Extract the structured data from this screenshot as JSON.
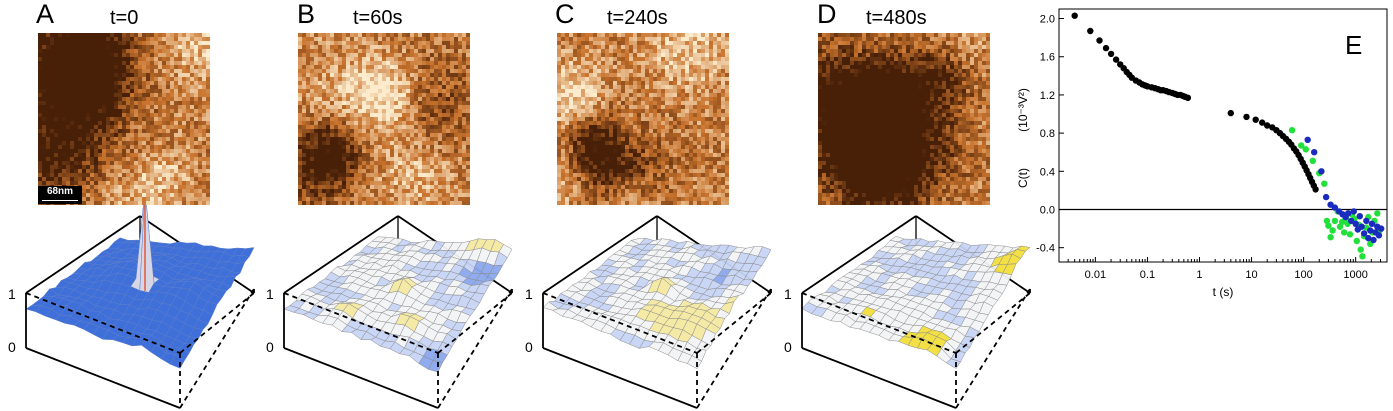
{
  "panels": [
    {
      "letter": "A",
      "time": "t=0",
      "scalebar": "68nm",
      "seed": 11,
      "peak": "sharp"
    },
    {
      "letter": "B",
      "time": "t=60s",
      "seed": 23,
      "peak": "small"
    },
    {
      "letter": "C",
      "time": "t=240s",
      "seed": 37,
      "peak": "small"
    },
    {
      "letter": "D",
      "time": "t=480s",
      "seed": 53,
      "peak": "flat"
    }
  ],
  "box_axis": {
    "top_label": "1",
    "bottom_label": "0"
  },
  "colors": {
    "afm_dark": "#5a2a08",
    "afm_mid": "#c9732c",
    "afm_light": "#fbe9c8",
    "surface_blue": "#3f6fd8",
    "surface_yellow": "#f2de3a",
    "series_black": "#000000",
    "series_green": "#22e03a",
    "series_blue": "#1a2bbf"
  },
  "chart_data": {
    "type": "scatter",
    "panel_letter": "E",
    "xlabel": "t (s)",
    "ylabel_main": "C(t)",
    "ylabel_unit": "(10⁻³V²)",
    "xscale": "log",
    "xlim": [
      0.002,
      4000
    ],
    "ylim": [
      -0.55,
      2.1
    ],
    "xticks": [
      {
        "v": 0.01,
        "label": "0.01"
      },
      {
        "v": 0.1,
        "label": "0.1"
      },
      {
        "v": 1,
        "label": "1"
      },
      {
        "v": 10,
        "label": "10"
      },
      {
        "v": 100,
        "label": "100"
      },
      {
        "v": 1000,
        "label": "1000"
      }
    ],
    "yticks": [
      {
        "v": 2.0,
        "label": "2.0"
      },
      {
        "v": 1.6,
        "label": "1.6"
      },
      {
        "v": 1.2,
        "label": "1.2"
      },
      {
        "v": 0.8,
        "label": "0.8"
      },
      {
        "v": 0.4,
        "label": "0.4"
      },
      {
        "v": 0.0,
        "label": "0.0"
      },
      {
        "v": -0.4,
        "label": "-0.4"
      }
    ],
    "zero_line": true,
    "series": [
      {
        "color": "#000000",
        "points": [
          [
            0.004,
            2.03
          ],
          [
            0.008,
            1.87
          ],
          [
            0.012,
            1.77
          ],
          [
            0.016,
            1.69
          ],
          [
            0.02,
            1.63
          ],
          [
            0.025,
            1.57
          ],
          [
            0.03,
            1.52
          ],
          [
            0.035,
            1.48
          ],
          [
            0.04,
            1.44
          ],
          [
            0.045,
            1.41
          ],
          [
            0.05,
            1.38
          ],
          [
            0.06,
            1.35
          ],
          [
            0.07,
            1.33
          ],
          [
            0.08,
            1.31
          ],
          [
            0.09,
            1.3
          ],
          [
            0.1,
            1.29
          ],
          [
            0.12,
            1.28
          ],
          [
            0.14,
            1.27
          ],
          [
            0.16,
            1.26
          ],
          [
            0.18,
            1.25
          ],
          [
            0.2,
            1.25
          ],
          [
            0.23,
            1.24
          ],
          [
            0.26,
            1.23
          ],
          [
            0.3,
            1.22
          ],
          [
            0.34,
            1.21
          ],
          [
            0.38,
            1.2
          ],
          [
            0.43,
            1.2
          ],
          [
            0.48,
            1.19
          ],
          [
            0.53,
            1.18
          ],
          [
            0.6,
            1.17
          ],
          [
            4,
            1.01
          ],
          [
            8,
            0.97
          ],
          [
            12,
            0.94
          ],
          [
            16,
            0.91
          ],
          [
            20,
            0.88
          ],
          [
            25,
            0.86
          ],
          [
            30,
            0.83
          ],
          [
            35,
            0.8
          ],
          [
            40,
            0.77
          ],
          [
            46,
            0.74
          ],
          [
            52,
            0.71
          ],
          [
            58,
            0.68
          ],
          [
            65,
            0.64
          ],
          [
            72,
            0.61
          ],
          [
            80,
            0.57
          ],
          [
            88,
            0.53
          ],
          [
            96,
            0.49
          ],
          [
            105,
            0.45
          ],
          [
            114,
            0.41
          ],
          [
            124,
            0.37
          ],
          [
            134,
            0.33
          ],
          [
            145,
            0.29
          ],
          [
            157,
            0.25
          ],
          [
            170,
            0.21
          ]
        ]
      },
      {
        "color": "#22e03a",
        "points": [
          [
            60,
            0.83
          ],
          [
            90,
            0.67
          ],
          [
            110,
            0.63
          ],
          [
            150,
            0.51
          ],
          [
            200,
            0.38
          ],
          [
            250,
            0.27
          ],
          [
            280,
            -0.12
          ],
          [
            300,
            -0.17
          ],
          [
            330,
            -0.29
          ],
          [
            360,
            -0.22
          ],
          [
            400,
            -0.12
          ],
          [
            450,
            -0.02
          ],
          [
            500,
            -0.18
          ],
          [
            550,
            -0.13
          ],
          [
            600,
            -0.24
          ],
          [
            650,
            -0.09
          ],
          [
            700,
            -0.15
          ],
          [
            780,
            -0.26
          ],
          [
            850,
            -0.05
          ],
          [
            950,
            -0.1
          ],
          [
            1050,
            -0.33
          ],
          [
            1150,
            -0.16
          ],
          [
            1250,
            -0.42
          ],
          [
            1350,
            -0.49
          ],
          [
            1450,
            -0.28
          ],
          [
            1600,
            -0.19
          ],
          [
            1750,
            -0.08
          ],
          [
            1900,
            -0.36
          ],
          [
            2100,
            -0.24
          ],
          [
            2300,
            -0.12
          ],
          [
            2600,
            -0.04
          ],
          [
            2900,
            -0.22
          ]
        ]
      },
      {
        "color": "#1a2bbf",
        "points": [
          [
            120,
            0.73
          ],
          [
            160,
            0.6
          ],
          [
            220,
            0.4
          ],
          [
            270,
            0.13
          ],
          [
            330,
            0.05
          ],
          [
            400,
            0.02
          ],
          [
            480,
            -0.02
          ],
          [
            560,
            -0.05
          ],
          [
            640,
            -0.08
          ],
          [
            720,
            -0.04
          ],
          [
            820,
            -0.12
          ],
          [
            920,
            -0.02
          ],
          [
            1000,
            -0.15
          ],
          [
            1100,
            -0.21
          ],
          [
            1200,
            -0.07
          ],
          [
            1300,
            -0.18
          ],
          [
            1450,
            -0.25
          ],
          [
            1600,
            -0.12
          ],
          [
            1750,
            -0.3
          ],
          [
            1900,
            -0.22
          ],
          [
            2050,
            -0.15
          ],
          [
            2200,
            -0.32
          ],
          [
            2400,
            -0.24
          ],
          [
            2600,
            -0.18
          ],
          [
            2800,
            -0.27
          ],
          [
            3100,
            -0.2
          ]
        ]
      }
    ]
  }
}
